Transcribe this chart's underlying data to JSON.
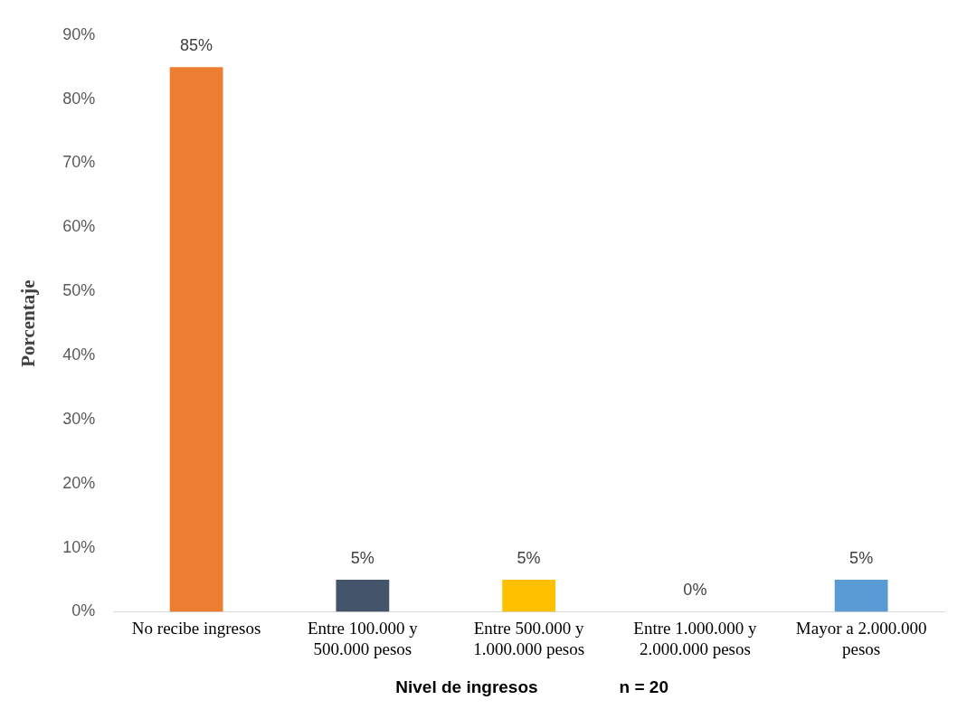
{
  "chart_data": {
    "type": "bar",
    "ylabel": "Porcentaje",
    "xlabel": "Nivel de ingresos",
    "annotations": [
      "n = 20"
    ],
    "categories": [
      "No recibe ingresos",
      "Entre 100.000 y 500.000 pesos",
      "Entre 500.000 y 1.000.000 pesos",
      "Entre 1.000.000 y 2.000.000 pesos",
      "Mayor a 2.000.000 pesos"
    ],
    "values": [
      85,
      5,
      5,
      0,
      5
    ],
    "colors": [
      "#ed7d31",
      "#44546a",
      "#ffc000",
      "#a5a5a5",
      "#5b9bd5"
    ],
    "value_labels": [
      "85%",
      "5%",
      "5%",
      "0%",
      "5%"
    ],
    "ylim": [
      0,
      90
    ],
    "yticks": [
      {
        "value": 0,
        "label": "0%"
      },
      {
        "value": 10,
        "label": "10%"
      },
      {
        "value": 20,
        "label": "20%"
      },
      {
        "value": 30,
        "label": "30%"
      },
      {
        "value": 40,
        "label": "40%"
      },
      {
        "value": 50,
        "label": "50%"
      },
      {
        "value": 60,
        "label": "60%"
      },
      {
        "value": 70,
        "label": "70%"
      },
      {
        "value": 80,
        "label": "80%"
      },
      {
        "value": 90,
        "label": "90%"
      }
    ],
    "grid": false,
    "legend": false
  }
}
